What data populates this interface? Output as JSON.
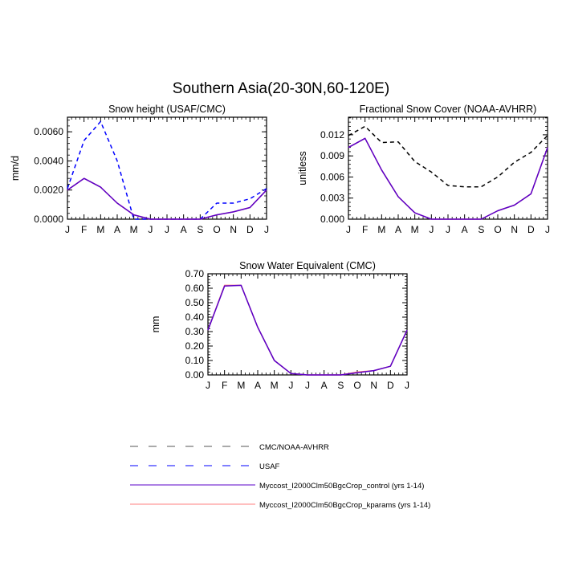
{
  "title": "Southern Asia(20-30N,60-120E)",
  "colors": {
    "cmc_noaa": "#000000",
    "usaf": "#0000ff",
    "control": "#6a0dad",
    "kparams": "#ff7f7f"
  },
  "chart_data": [
    {
      "type": "line",
      "title": "Snow height (USAF/CMC)",
      "ylabel": "mm/d",
      "xlabel": "",
      "categories": [
        "J",
        "F",
        "M",
        "A",
        "M",
        "J",
        "J",
        "A",
        "S",
        "O",
        "N",
        "D",
        "J"
      ],
      "ylim": [
        0,
        0.007
      ],
      "yticks": [
        0,
        0.002,
        0.004,
        0.006
      ],
      "ytick_labels": [
        "0.0000",
        "0.0020",
        "0.0040",
        "0.0060"
      ],
      "grid": false,
      "series": [
        {
          "name": "USAF",
          "style": "dashed",
          "color": "#0000ff",
          "values": [
            0.0021,
            0.0054,
            0.0067,
            0.004,
            0.0,
            0.0,
            0.0,
            0.0,
            0.0,
            0.0011,
            0.0011,
            0.0014,
            0.0021
          ]
        },
        {
          "name": "Myccost_I2000Clm50BgcCrop_kparams (yrs 1-14)",
          "style": "solid",
          "color": "#ff7f7f",
          "values": [
            0.002,
            0.0028,
            0.0022,
            0.0011,
            0.0003,
            0.0,
            0.0,
            0.0,
            0.0,
            0.0003,
            0.0005,
            0.0008,
            0.002
          ]
        },
        {
          "name": "Myccost_I2000Clm50BgcCrop_control (yrs 1-14)",
          "style": "solid",
          "color": "#5a00c8",
          "values": [
            0.002,
            0.0028,
            0.0022,
            0.0011,
            0.0003,
            0.0,
            0.0,
            0.0,
            0.0,
            0.0003,
            0.0005,
            0.0008,
            0.002
          ]
        }
      ]
    },
    {
      "type": "line",
      "title": "Fractional Snow Cover (NOAA-AVHRR)",
      "ylabel": "unitless",
      "xlabel": "",
      "categories": [
        "J",
        "F",
        "M",
        "A",
        "M",
        "J",
        "J",
        "A",
        "S",
        "O",
        "N",
        "D",
        "J"
      ],
      "ylim": [
        0,
        0.0145
      ],
      "yticks": [
        0,
        0.003,
        0.006,
        0.009,
        0.012
      ],
      "ytick_labels": [
        "0.000",
        "0.003",
        "0.006",
        "0.009",
        "0.012"
      ],
      "grid": false,
      "series": [
        {
          "name": "CMC/NOAA-AVHRR",
          "style": "dashed",
          "color": "#000000",
          "values": [
            0.0119,
            0.0132,
            0.0109,
            0.011,
            0.0082,
            0.0067,
            0.0048,
            0.0046,
            0.0046,
            0.006,
            0.0081,
            0.0095,
            0.0119
          ]
        },
        {
          "name": "Myccost_I2000Clm50BgcCrop_kparams (yrs 1-14)",
          "style": "solid",
          "color": "#ff7f7f",
          "values": [
            0.0102,
            0.0115,
            0.007,
            0.0032,
            0.0009,
            0.0,
            0.0,
            0.0,
            0.0,
            0.0012,
            0.002,
            0.0036,
            0.0102
          ]
        },
        {
          "name": "Myccost_I2000Clm50BgcCrop_control (yrs 1-14)",
          "style": "solid",
          "color": "#5a00c8",
          "values": [
            0.0102,
            0.0115,
            0.007,
            0.0032,
            0.0009,
            0.0,
            0.0,
            0.0,
            0.0,
            0.0012,
            0.002,
            0.0036,
            0.0102
          ]
        }
      ]
    },
    {
      "type": "line",
      "title": "Snow Water Equivalent (CMC)",
      "ylabel": "mm",
      "xlabel": "",
      "categories": [
        "J",
        "F",
        "M",
        "A",
        "M",
        "J",
        "J",
        "A",
        "S",
        "O",
        "N",
        "D",
        "J"
      ],
      "ylim": [
        0,
        0.7
      ],
      "yticks": [
        0,
        0.1,
        0.2,
        0.3,
        0.4,
        0.5,
        0.6,
        0.7
      ],
      "ytick_labels": [
        "0.00",
        "0.10",
        "0.20",
        "0.30",
        "0.40",
        "0.50",
        "0.60",
        "0.70"
      ],
      "grid": false,
      "series": [
        {
          "name": "Myccost_I2000Clm50BgcCrop_kparams (yrs 1-14)",
          "style": "solid",
          "color": "#ff7f7f",
          "values": [
            0.31,
            0.62,
            0.62,
            0.33,
            0.1,
            0.01,
            0.0,
            0.0,
            0.0,
            0.02,
            0.03,
            0.06,
            0.31
          ]
        },
        {
          "name": "Myccost_I2000Clm50BgcCrop_control (yrs 1-14)",
          "style": "solid",
          "color": "#5a00c8",
          "values": [
            0.31,
            0.615,
            0.62,
            0.33,
            0.1,
            0.01,
            0.0,
            0.0,
            0.0,
            0.015,
            0.03,
            0.06,
            0.31
          ]
        }
      ]
    }
  ],
  "legend": [
    {
      "label": "CMC/NOAA-AVHRR",
      "style": "dashed",
      "color": "#000000"
    },
    {
      "label": "USAF",
      "style": "dashed",
      "color": "#0000ff"
    },
    {
      "label": "Myccost_I2000Clm50BgcCrop_control (yrs 1-14)",
      "style": "solid",
      "color": "#5a00c8"
    },
    {
      "label": "Myccost_I2000Clm50BgcCrop_kparams (yrs 1-14)",
      "style": "solid",
      "color": "#ff7f7f"
    }
  ]
}
